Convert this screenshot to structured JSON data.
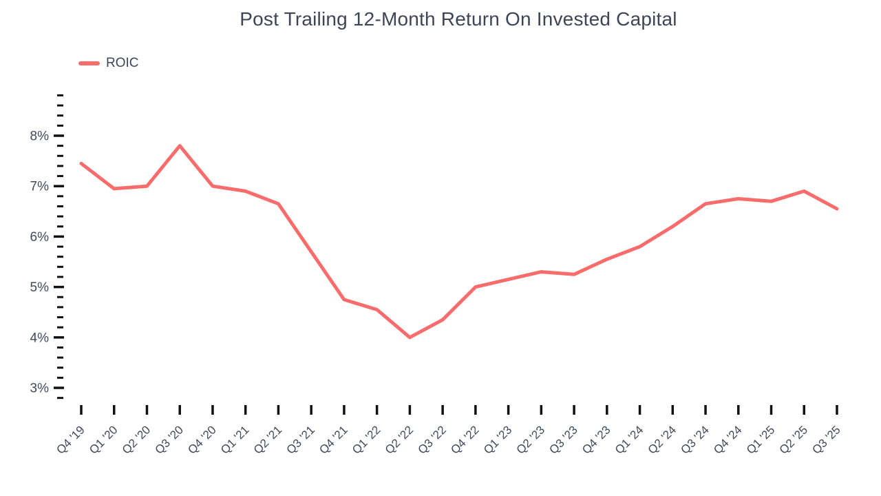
{
  "chart_data": {
    "type": "line",
    "title": "Post Trailing 12-Month Return On Invested Capital",
    "xlabel": "",
    "ylabel": "",
    "categories": [
      "Q4 '19",
      "Q1 '20",
      "Q2 '20",
      "Q3 '20",
      "Q4 '20",
      "Q1 '21",
      "Q2 '21",
      "Q3 '21",
      "Q4 '21",
      "Q1 '22",
      "Q2 '22",
      "Q3 '22",
      "Q4 '22",
      "Q1 '23",
      "Q2 '23",
      "Q3 '23",
      "Q4 '23",
      "Q1 '24",
      "Q2 '24",
      "Q3 '24",
      "Q4 '24",
      "Q1 '25",
      "Q2 '25",
      "Q3 '25"
    ],
    "series": [
      {
        "name": "ROIC",
        "color": "#F86C6B",
        "values": [
          7.45,
          6.95,
          7.0,
          7.8,
          7.0,
          6.9,
          6.65,
          5.7,
          4.75,
          4.55,
          4.0,
          4.35,
          5.0,
          5.15,
          5.3,
          5.25,
          5.55,
          5.8,
          6.2,
          6.65,
          6.75,
          6.7,
          6.9,
          6.55
        ]
      }
    ],
    "y_axis": {
      "unit": "%",
      "min": 2.8,
      "max": 8.8,
      "major_ticks": [
        8,
        7,
        6,
        5,
        4,
        3
      ],
      "major_tick_labels": [
        "8%",
        "7%",
        "6%",
        "5%",
        "4%",
        "3%"
      ],
      "minor_step": 0.2
    },
    "grid": false,
    "legend": {
      "position": "top-left",
      "entries": [
        "ROIC"
      ]
    },
    "colors": {
      "line": "#F86C6B",
      "title_text": "#3D4656",
      "tick_label_text": "#3F4A5C",
      "tick_mark": "#111111",
      "background": "#FFFFFF"
    }
  }
}
